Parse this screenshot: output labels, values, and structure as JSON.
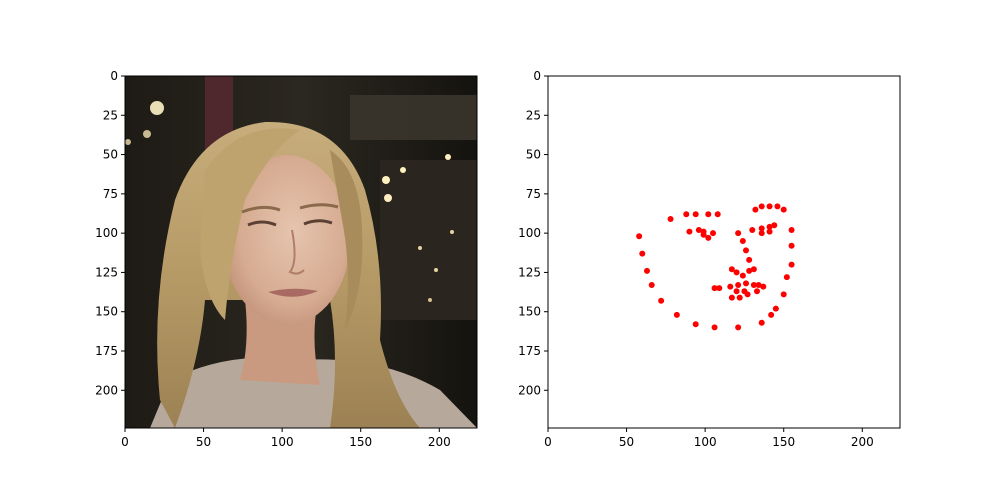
{
  "figure": {
    "background": "#ffffff"
  },
  "panels": [
    {
      "kind": "image",
      "subject": "face photo",
      "xlim": [
        0,
        224
      ],
      "ylim": [
        224,
        0
      ]
    },
    {
      "kind": "scatter",
      "xlim": [
        0,
        224
      ],
      "ylim": [
        224,
        0
      ]
    }
  ],
  "chart_data": {
    "type": "scatter",
    "title": "",
    "xlabel": "",
    "ylabel": "",
    "xlim": [
      0,
      224
    ],
    "ylim": [
      224,
      0
    ],
    "y_inverted": true,
    "grid": false,
    "legend": "none",
    "x_ticks": [
      0,
      50,
      100,
      150,
      200
    ],
    "y_ticks": [
      0,
      25,
      50,
      75,
      100,
      125,
      150,
      175,
      200
    ],
    "marker_color": "#ff0000",
    "series": [
      {
        "points": [
          [
            58,
            102
          ],
          [
            60,
            113
          ],
          [
            63,
            124
          ],
          [
            66,
            133
          ],
          [
            72,
            143
          ],
          [
            82,
            152
          ],
          [
            94,
            158
          ],
          [
            106,
            160
          ],
          [
            121,
            160
          ],
          [
            136,
            157
          ],
          [
            142,
            152
          ],
          [
            145,
            148
          ],
          [
            150,
            139
          ],
          [
            152,
            128
          ],
          [
            155,
            120
          ],
          [
            155,
            108
          ],
          [
            155,
            98
          ],
          [
            78,
            91
          ],
          [
            88,
            88
          ],
          [
            94,
            88
          ],
          [
            102,
            88
          ],
          [
            108,
            88
          ],
          [
            132,
            85
          ],
          [
            136,
            83
          ],
          [
            141,
            83
          ],
          [
            146,
            83
          ],
          [
            150,
            85
          ],
          [
            121,
            100
          ],
          [
            124,
            105
          ],
          [
            126,
            111
          ],
          [
            128,
            117
          ],
          [
            117,
            123
          ],
          [
            120,
            125
          ],
          [
            124,
            127
          ],
          [
            128,
            124
          ],
          [
            131,
            123
          ],
          [
            90,
            99
          ],
          [
            96,
            98
          ],
          [
            99,
            99
          ],
          [
            102,
            103
          ],
          [
            105,
            100
          ],
          [
            99,
            101
          ],
          [
            130,
            98
          ],
          [
            136,
            97
          ],
          [
            141,
            96
          ],
          [
            144,
            95
          ],
          [
            141,
            99
          ],
          [
            136,
            100
          ],
          [
            106,
            135
          ],
          [
            109,
            135
          ],
          [
            116,
            134
          ],
          [
            121,
            133
          ],
          [
            126,
            132
          ],
          [
            131,
            133
          ],
          [
            134,
            133
          ],
          [
            137,
            134
          ],
          [
            133,
            137
          ],
          [
            127,
            139
          ],
          [
            122,
            141
          ],
          [
            117,
            141
          ],
          [
            120,
            137
          ],
          [
            125,
            137
          ]
        ]
      }
    ]
  }
}
